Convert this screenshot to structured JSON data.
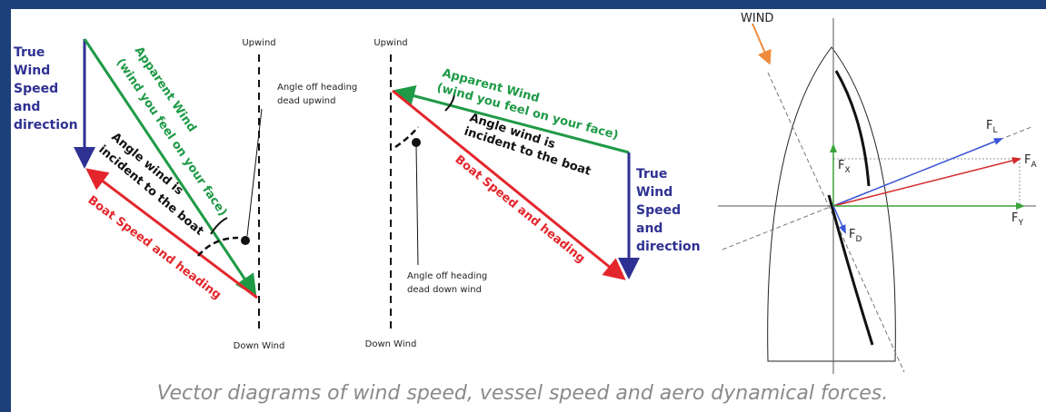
{
  "diagrams": [
    {
      "true_wind": [
        "True",
        "Wind",
        "Speed",
        "and",
        "direction"
      ],
      "apparent_wind": [
        "Apparent Wind",
        "(wind you feel on your face)"
      ],
      "incident_angle": [
        "Angle wind is",
        "incident to the boat"
      ],
      "boat": "Boat Speed and heading",
      "upwind": "Upwind",
      "angle_off": [
        "Angle off heading",
        "dead upwind"
      ],
      "downwind": "Down Wind"
    },
    {
      "true_wind": [
        "True",
        "Wind",
        "Speed",
        "and",
        "direction"
      ],
      "apparent_wind": [
        "Apparent Wind",
        "(wind you feel on your face)"
      ],
      "incident_angle": [
        "Angle wind is",
        "incident to the boat"
      ],
      "boat": "Boat Speed and heading",
      "upwind": "Upwind",
      "angle_off": [
        "Angle off heading",
        "dead down wind"
      ],
      "downwind": "Down Wind"
    }
  ],
  "forces": {
    "wind": "WIND",
    "labels": [
      {
        "main": "F",
        "sub": "L"
      },
      {
        "main": "F",
        "sub": "A"
      },
      {
        "main": "F",
        "sub": "X"
      },
      {
        "main": "F",
        "sub": "Y"
      },
      {
        "main": "F",
        "sub": "D"
      }
    ]
  },
  "caption": "Vector diagrams of wind speed, vessel speed and aero dynamical forces."
}
